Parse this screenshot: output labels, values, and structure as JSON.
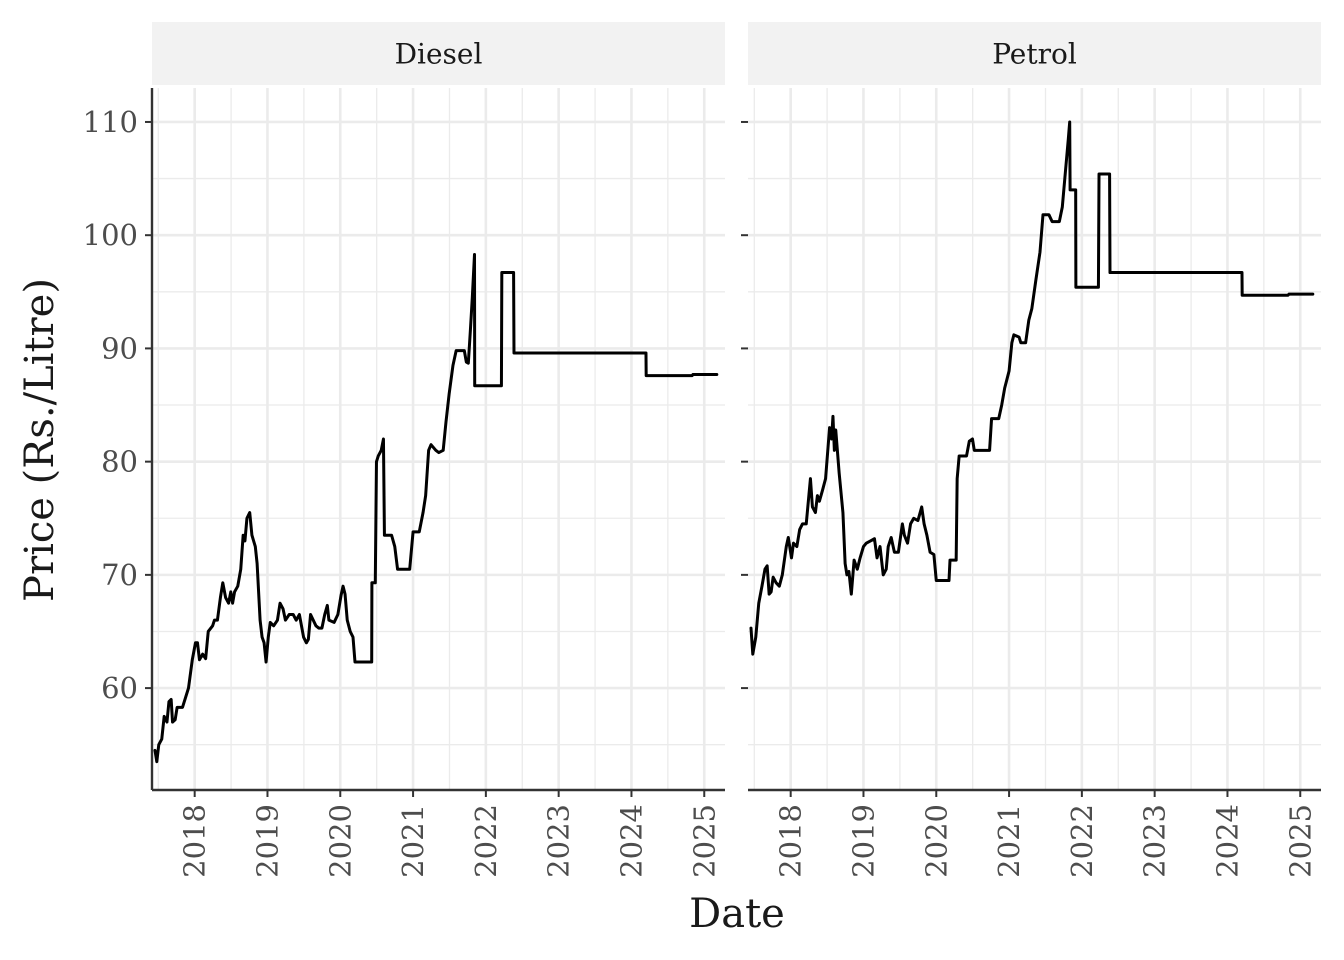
{
  "chart_data": {
    "type": "line",
    "xlabel": "Date",
    "ylabel": "Price (Rs./Litre)",
    "x_ticks": [
      "2018",
      "2019",
      "2020",
      "2021",
      "2022",
      "2023",
      "2024",
      "2025"
    ],
    "y_ticks": [
      "60",
      "70",
      "80",
      "90",
      "100",
      "110"
    ],
    "xlim": [
      "2017-06-01",
      "2025-04-15"
    ],
    "ylim": [
      51,
      113
    ],
    "grid": true,
    "line_color": "#000000",
    "panels": [
      {
        "name": "Diesel",
        "points": [
          [
            "2017-06-16",
            54.5
          ],
          [
            "2017-06-25",
            53.5
          ],
          [
            "2017-07-05",
            55.0
          ],
          [
            "2017-07-20",
            55.5
          ],
          [
            "2017-08-01",
            57.5
          ],
          [
            "2017-08-15",
            57.0
          ],
          [
            "2017-08-25",
            58.8
          ],
          [
            "2017-09-05",
            59.0
          ],
          [
            "2017-09-12",
            57.0
          ],
          [
            "2017-09-25",
            57.2
          ],
          [
            "2017-10-05",
            58.3
          ],
          [
            "2017-11-01",
            58.3
          ],
          [
            "2017-12-01",
            60.0
          ],
          [
            "2017-12-20",
            62.5
          ],
          [
            "2018-01-05",
            64.0
          ],
          [
            "2018-01-15",
            64.0
          ],
          [
            "2018-01-25",
            62.5
          ],
          [
            "2018-02-10",
            63.0
          ],
          [
            "2018-02-25",
            62.6
          ],
          [
            "2018-03-10",
            65.0
          ],
          [
            "2018-04-01",
            65.5
          ],
          [
            "2018-04-10",
            66.0
          ],
          [
            "2018-04-25",
            66.0
          ],
          [
            "2018-05-10",
            68.0
          ],
          [
            "2018-05-22",
            69.3
          ],
          [
            "2018-06-05",
            68.0
          ],
          [
            "2018-06-20",
            67.5
          ],
          [
            "2018-07-01",
            68.5
          ],
          [
            "2018-07-10",
            67.5
          ],
          [
            "2018-07-20",
            68.5
          ],
          [
            "2018-08-05",
            69.0
          ],
          [
            "2018-08-20",
            70.5
          ],
          [
            "2018-09-01",
            73.5
          ],
          [
            "2018-09-10",
            73.0
          ],
          [
            "2018-09-20",
            75.0
          ],
          [
            "2018-10-04",
            75.5
          ],
          [
            "2018-10-15",
            73.5
          ],
          [
            "2018-11-01",
            72.5
          ],
          [
            "2018-11-10",
            71.0
          ],
          [
            "2018-11-25",
            66.0
          ],
          [
            "2018-12-05",
            64.5
          ],
          [
            "2018-12-15",
            64.0
          ],
          [
            "2018-12-25",
            62.3
          ],
          [
            "2019-01-05",
            64.5
          ],
          [
            "2019-01-15",
            65.8
          ],
          [
            "2019-02-01",
            65.5
          ],
          [
            "2019-02-20",
            66.0
          ],
          [
            "2019-03-05",
            67.5
          ],
          [
            "2019-03-20",
            67.0
          ],
          [
            "2019-04-01",
            66.0
          ],
          [
            "2019-04-20",
            66.5
          ],
          [
            "2019-05-10",
            66.5
          ],
          [
            "2019-05-25",
            66.0
          ],
          [
            "2019-06-10",
            66.5
          ],
          [
            "2019-07-01",
            64.5
          ],
          [
            "2019-07-15",
            64.0
          ],
          [
            "2019-07-25",
            64.3
          ],
          [
            "2019-08-05",
            66.5
          ],
          [
            "2019-09-01",
            65.5
          ],
          [
            "2019-09-15",
            65.3
          ],
          [
            "2019-10-01",
            65.3
          ],
          [
            "2019-10-15",
            66.5
          ],
          [
            "2019-10-28",
            67.3
          ],
          [
            "2019-11-05",
            66.0
          ],
          [
            "2019-12-01",
            65.8
          ],
          [
            "2019-12-20",
            66.5
          ],
          [
            "2020-01-05",
            68.2
          ],
          [
            "2020-01-15",
            69.0
          ],
          [
            "2020-01-25",
            68.3
          ],
          [
            "2020-02-05",
            66.0
          ],
          [
            "2020-02-20",
            65.0
          ],
          [
            "2020-03-05",
            64.5
          ],
          [
            "2020-03-15",
            62.3
          ],
          [
            "2020-06-07",
            62.3
          ],
          [
            "2020-06-08",
            69.3
          ],
          [
            "2020-06-25",
            69.3
          ],
          [
            "2020-07-01",
            80.0
          ],
          [
            "2020-07-10",
            80.5
          ],
          [
            "2020-07-25",
            81.0
          ],
          [
            "2020-08-05",
            82.0
          ],
          [
            "2020-08-10",
            73.5
          ],
          [
            "2020-09-15",
            73.5
          ],
          [
            "2020-10-01",
            72.5
          ],
          [
            "2020-10-15",
            70.5
          ],
          [
            "2020-12-15",
            70.5
          ],
          [
            "2021-01-01",
            73.8
          ],
          [
            "2021-02-01",
            73.8
          ],
          [
            "2021-02-20",
            75.5
          ],
          [
            "2021-03-05",
            77.0
          ],
          [
            "2021-03-20",
            81.0
          ],
          [
            "2021-04-01",
            81.5
          ],
          [
            "2021-04-25",
            81.0
          ],
          [
            "2021-05-10",
            80.8
          ],
          [
            "2021-06-01",
            81.0
          ],
          [
            "2021-06-15",
            83.5
          ],
          [
            "2021-07-01",
            86.0
          ],
          [
            "2021-07-20",
            88.5
          ],
          [
            "2021-08-05",
            89.8
          ],
          [
            "2021-09-15",
            89.8
          ],
          [
            "2021-09-25",
            88.8
          ],
          [
            "2021-10-05",
            88.7
          ],
          [
            "2021-10-15",
            91.5
          ],
          [
            "2021-10-25",
            94.5
          ],
          [
            "2021-11-05",
            98.3
          ],
          [
            "2021-11-06",
            86.7
          ],
          [
            "2022-03-20",
            86.7
          ],
          [
            "2022-03-22",
            96.7
          ],
          [
            "2022-05-20",
            96.7
          ],
          [
            "2022-05-22",
            89.6
          ],
          [
            "2024-03-14",
            89.6
          ],
          [
            "2024-03-15",
            87.6
          ],
          [
            "2024-11-01",
            87.6
          ],
          [
            "2024-11-05",
            87.7
          ],
          [
            "2025-03-05",
            87.7
          ]
        ]
      },
      {
        "name": "Petrol",
        "points": [
          [
            "2017-06-16",
            65.3
          ],
          [
            "2017-06-25",
            63.0
          ],
          [
            "2017-07-10",
            64.5
          ],
          [
            "2017-07-25",
            67.5
          ],
          [
            "2017-08-10",
            69.0
          ],
          [
            "2017-08-25",
            70.5
          ],
          [
            "2017-09-05",
            70.8
          ],
          [
            "2017-09-15",
            68.3
          ],
          [
            "2017-09-25",
            68.5
          ],
          [
            "2017-10-05",
            69.8
          ],
          [
            "2017-10-20",
            69.3
          ],
          [
            "2017-11-05",
            69.0
          ],
          [
            "2017-11-20",
            70.0
          ],
          [
            "2017-12-10",
            72.5
          ],
          [
            "2017-12-20",
            73.3
          ],
          [
            "2018-01-05",
            71.5
          ],
          [
            "2018-01-15",
            72.8
          ],
          [
            "2018-02-01",
            72.5
          ],
          [
            "2018-02-15",
            74.0
          ],
          [
            "2018-03-01",
            74.5
          ],
          [
            "2018-03-20",
            74.5
          ],
          [
            "2018-04-10",
            78.5
          ],
          [
            "2018-04-20",
            76.0
          ],
          [
            "2018-05-05",
            75.5
          ],
          [
            "2018-05-15",
            77.0
          ],
          [
            "2018-05-25",
            76.5
          ],
          [
            "2018-06-10",
            77.5
          ],
          [
            "2018-06-25",
            78.5
          ],
          [
            "2018-07-15",
            83.0
          ],
          [
            "2018-07-25",
            82.0
          ],
          [
            "2018-08-01",
            84.0
          ],
          [
            "2018-08-08",
            81.0
          ],
          [
            "2018-08-15",
            82.8
          ],
          [
            "2018-09-01",
            79.0
          ],
          [
            "2018-09-20",
            75.5
          ],
          [
            "2018-10-01",
            71.0
          ],
          [
            "2018-10-10",
            70.0
          ],
          [
            "2018-10-20",
            70.3
          ],
          [
            "2018-11-01",
            68.3
          ],
          [
            "2018-11-15",
            71.3
          ],
          [
            "2018-12-01",
            70.5
          ],
          [
            "2018-12-15",
            71.5
          ],
          [
            "2019-01-01",
            72.5
          ],
          [
            "2019-01-15",
            72.8
          ],
          [
            "2019-02-05",
            73.0
          ],
          [
            "2019-02-25",
            73.2
          ],
          [
            "2019-03-10",
            71.5
          ],
          [
            "2019-03-25",
            72.5
          ],
          [
            "2019-04-10",
            70.0
          ],
          [
            "2019-04-25",
            70.5
          ],
          [
            "2019-05-05",
            72.5
          ],
          [
            "2019-05-20",
            73.3
          ],
          [
            "2019-06-05",
            72.0
          ],
          [
            "2019-06-25",
            72.0
          ],
          [
            "2019-07-15",
            74.5
          ],
          [
            "2019-07-25",
            73.5
          ],
          [
            "2019-08-10",
            72.8
          ],
          [
            "2019-08-25",
            74.5
          ],
          [
            "2019-09-10",
            75.0
          ],
          [
            "2019-10-01",
            74.8
          ],
          [
            "2019-10-20",
            76.0
          ],
          [
            "2019-11-01",
            74.5
          ],
          [
            "2019-11-15",
            73.5
          ],
          [
            "2019-12-01",
            72.0
          ],
          [
            "2019-12-20",
            71.8
          ],
          [
            "2020-01-01",
            69.5
          ],
          [
            "2020-03-05",
            69.5
          ],
          [
            "2020-03-10",
            71.3
          ],
          [
            "2020-04-10",
            71.3
          ],
          [
            "2020-04-15",
            78.5
          ],
          [
            "2020-04-25",
            80.5
          ],
          [
            "2020-06-01",
            80.5
          ],
          [
            "2020-06-15",
            81.8
          ],
          [
            "2020-07-01",
            82.0
          ],
          [
            "2020-07-10",
            81.0
          ],
          [
            "2020-09-25",
            81.0
          ],
          [
            "2020-10-05",
            83.8
          ],
          [
            "2020-11-10",
            83.8
          ],
          [
            "2020-11-25",
            85.0
          ],
          [
            "2020-12-10",
            86.5
          ],
          [
            "2021-01-01",
            88.0
          ],
          [
            "2021-01-15",
            90.5
          ],
          [
            "2021-01-25",
            91.2
          ],
          [
            "2021-02-20",
            91.0
          ],
          [
            "2021-03-01",
            90.5
          ],
          [
            "2021-03-25",
            90.5
          ],
          [
            "2021-04-10",
            92.5
          ],
          [
            "2021-04-25",
            93.5
          ],
          [
            "2021-05-15",
            96.0
          ],
          [
            "2021-06-05",
            98.5
          ],
          [
            "2021-06-20",
            101.8
          ],
          [
            "2021-07-20",
            101.8
          ],
          [
            "2021-08-05",
            101.2
          ],
          [
            "2021-09-10",
            101.2
          ],
          [
            "2021-09-25",
            102.5
          ],
          [
            "2021-10-10",
            105.5
          ],
          [
            "2021-10-25",
            108.5
          ],
          [
            "2021-11-01",
            110.0
          ],
          [
            "2021-11-03",
            104.0
          ],
          [
            "2021-12-01",
            104.0
          ],
          [
            "2021-12-02",
            95.4
          ],
          [
            "2022-03-25",
            95.4
          ],
          [
            "2022-03-28",
            105.4
          ],
          [
            "2022-05-20",
            105.4
          ],
          [
            "2022-05-22",
            96.7
          ],
          [
            "2024-03-14",
            96.7
          ],
          [
            "2024-03-15",
            94.7
          ],
          [
            "2024-11-01",
            94.7
          ],
          [
            "2024-11-05",
            94.8
          ],
          [
            "2025-03-05",
            94.8
          ]
        ]
      }
    ]
  }
}
